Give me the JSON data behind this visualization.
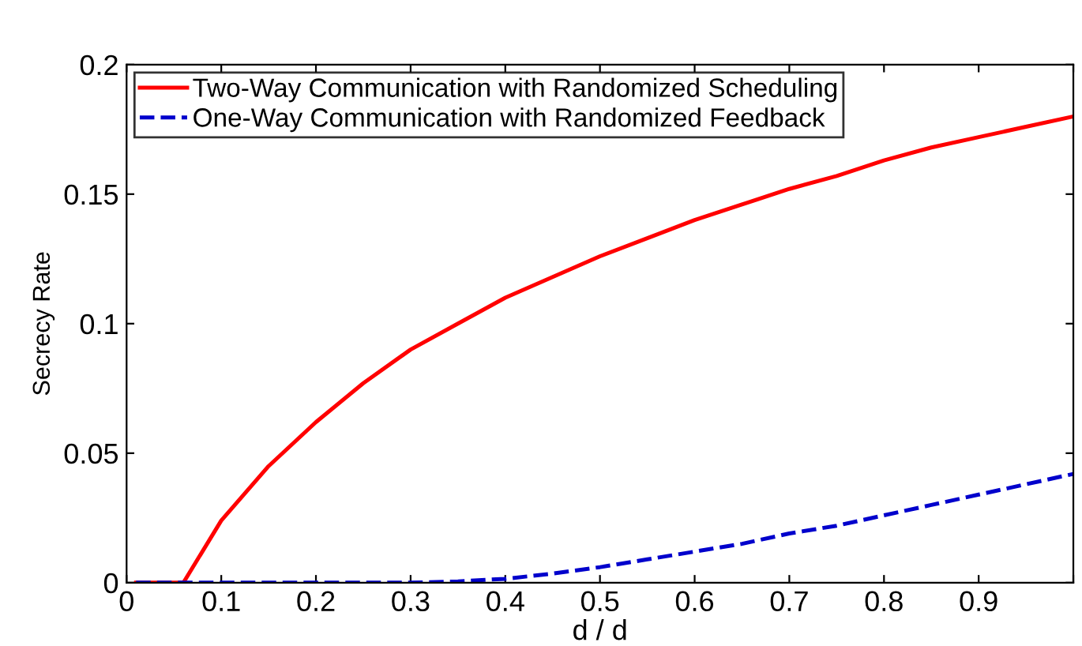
{
  "chart_data": {
    "type": "line",
    "xlabel": "d / d",
    "ylabel": "Secrecy Rate",
    "xlim": [
      0,
      1
    ],
    "ylim": [
      0,
      0.2
    ],
    "xticks": [
      0,
      0.1,
      0.2,
      0.3,
      0.4,
      0.5,
      0.6,
      0.7,
      0.8,
      0.9,
      {
        "value": 1,
        "label": null
      }
    ],
    "yticks": [
      0,
      0.05,
      0.1,
      0.15,
      0.2
    ],
    "grid": false,
    "legend": "top left",
    "series": [
      {
        "name": "Two-Way Communication with Randomized Scheduling",
        "color": "#ff0000",
        "line_style": "solid",
        "x": [
          0.01,
          0.06,
          0.1,
          0.15,
          0.2,
          0.25,
          0.3,
          0.35,
          0.4,
          0.45,
          0.5,
          0.55,
          0.6,
          0.65,
          0.7,
          0.75,
          0.8,
          0.85,
          0.9,
          0.95,
          1.0
        ],
        "values": [
          0,
          0,
          0.024,
          0.045,
          0.062,
          0.077,
          0.09,
          0.1,
          0.11,
          0.118,
          0.126,
          0.133,
          0.14,
          0.146,
          0.152,
          0.157,
          0.163,
          0.168,
          0.172,
          0.176,
          0.18
        ]
      },
      {
        "name": "One-Way Communication with Randomized Feedback",
        "color": "#0000cc",
        "line_style": "dashed",
        "x": [
          0.01,
          0.3,
          0.35,
          0.4,
          0.45,
          0.5,
          0.55,
          0.6,
          0.65,
          0.7,
          0.75,
          0.8,
          0.85,
          0.9,
          0.95,
          1.0
        ],
        "values": [
          0,
          0,
          0.0005,
          0.0015,
          0.0035,
          0.006,
          0.009,
          0.012,
          0.015,
          0.019,
          0.022,
          0.026,
          0.03,
          0.034,
          0.038,
          0.042
        ]
      }
    ]
  }
}
